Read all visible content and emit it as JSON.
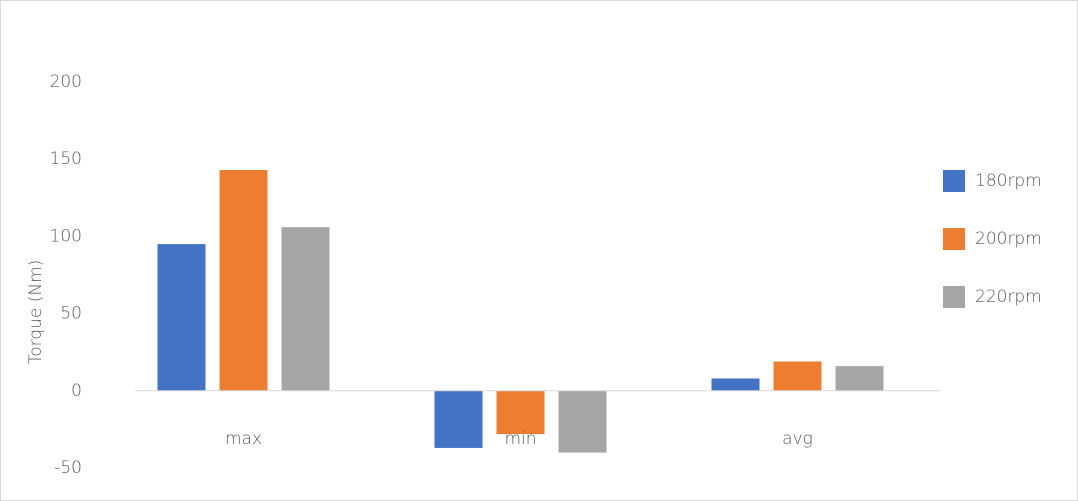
{
  "chart_data": {
    "type": "bar",
    "ylabel": "Torque (Nm)",
    "categories": [
      "max",
      "min",
      "avg"
    ],
    "series": [
      {
        "name": "180rpm",
        "color": "#4472c4",
        "values": [
          95,
          -37,
          8
        ]
      },
      {
        "name": "200rpm",
        "color": "#ed7d31",
        "values": [
          143,
          -28,
          19
        ]
      },
      {
        "name": "220rpm",
        "color": "#a5a5a5",
        "values": [
          106,
          -40,
          16
        ]
      }
    ],
    "ylim": [
      -50,
      200
    ],
    "yticks": [
      -50,
      0,
      50,
      100,
      150,
      200
    ],
    "grid": false,
    "legend": "right"
  }
}
